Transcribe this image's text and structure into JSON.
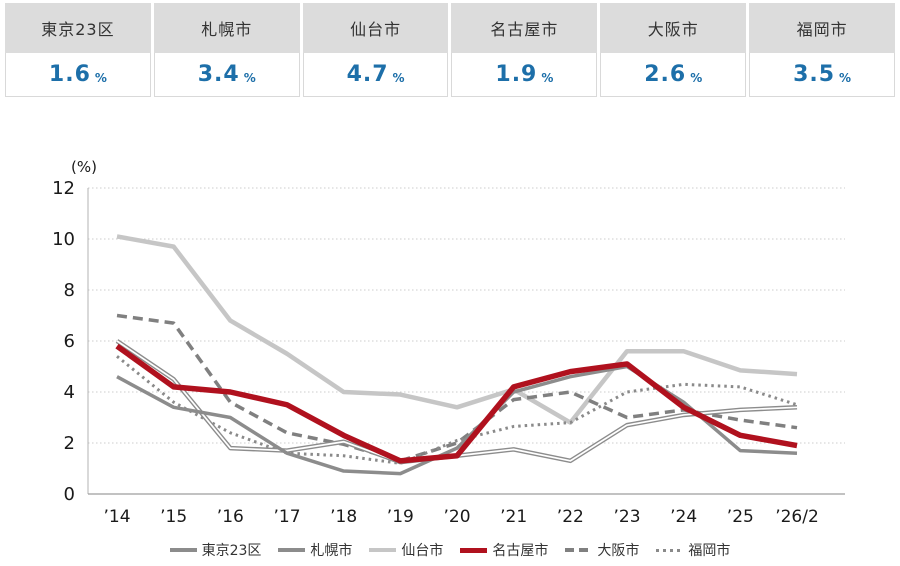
{
  "unit_suffix": "%",
  "summary_cards": [
    {
      "city": "東京23区",
      "value": "1.6"
    },
    {
      "city": "札幌市",
      "value": "3.4"
    },
    {
      "city": "仙台市",
      "value": "4.7"
    },
    {
      "city": "名古屋市",
      "value": "1.9"
    },
    {
      "city": "大阪市",
      "value": "2.6"
    },
    {
      "city": "福岡市",
      "value": "3.5"
    }
  ],
  "colors": {
    "header_band": "#dcdcdc",
    "value_blue": "#1d6fa9",
    "grid_line": "#cccccc",
    "axis_line": "#a8a8a8",
    "tick_text": "#1a1a1a"
  },
  "chart_data": {
    "type": "line",
    "y_axis_unit": "(%)",
    "ylim": [
      0,
      12
    ],
    "y_ticks": [
      0,
      2,
      4,
      6,
      8,
      10,
      12
    ],
    "grid": "horizontal-dotted",
    "legend_position": "bottom",
    "x_labels": [
      "’14",
      "’15",
      "’16",
      "’17",
      "’18",
      "’19",
      "’20",
      "’21",
      "’22",
      "’23",
      "’24",
      "’25",
      "’26/2"
    ],
    "series": [
      {
        "name": "東京23区",
        "style": "solid",
        "color": "#8c8c8c",
        "width": 3.5,
        "values": [
          4.6,
          3.4,
          3.0,
          1.6,
          0.9,
          0.8,
          1.8,
          4.0,
          4.6,
          5.0,
          3.6,
          1.7,
          1.6
        ]
      },
      {
        "name": "札幌市",
        "style": "double",
        "color": "#8c8c8c",
        "width": 4.5,
        "values": [
          6.0,
          4.5,
          1.8,
          1.7,
          2.05,
          1.25,
          1.5,
          1.75,
          1.3,
          2.7,
          3.1,
          3.3,
          3.4
        ]
      },
      {
        "name": "仙台市",
        "style": "solid",
        "color": "#c6c6c6",
        "width": 4.5,
        "values": [
          10.1,
          9.7,
          6.8,
          5.5,
          4.0,
          3.9,
          3.4,
          4.1,
          2.8,
          5.6,
          5.6,
          4.85,
          4.7
        ]
      },
      {
        "name": "名古屋市",
        "style": "solid",
        "color": "#b0111e",
        "width": 5.5,
        "values": [
          5.8,
          4.2,
          4.0,
          3.5,
          2.3,
          1.3,
          1.5,
          4.2,
          4.8,
          5.1,
          3.4,
          2.3,
          1.9
        ]
      },
      {
        "name": "大阪市",
        "style": "dashed",
        "color": "#808080",
        "width": 3.5,
        "values": [
          7.0,
          6.7,
          3.6,
          2.4,
          1.95,
          1.3,
          2.0,
          3.7,
          4.0,
          3.0,
          3.3,
          2.9,
          2.6
        ]
      },
      {
        "name": "福岡市",
        "style": "dotted",
        "color": "#8a8a8a",
        "width": 3,
        "values": [
          5.4,
          3.6,
          2.4,
          1.6,
          1.5,
          1.2,
          2.1,
          2.65,
          2.8,
          4.0,
          4.3,
          4.2,
          3.5
        ]
      }
    ]
  }
}
